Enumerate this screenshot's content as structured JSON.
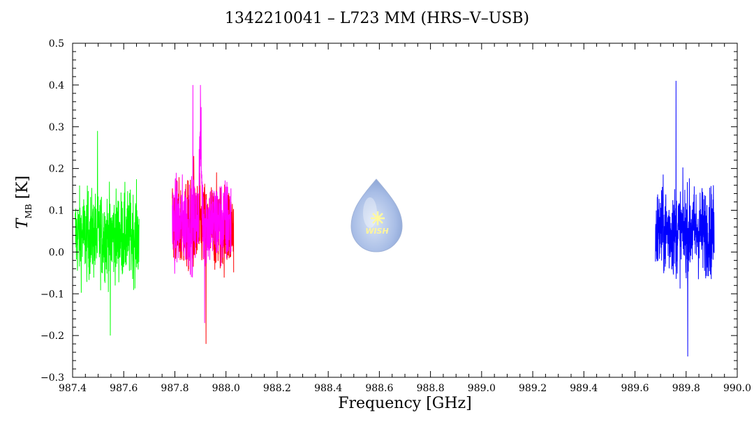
{
  "chart_data": {
    "type": "line",
    "title": "1342210041 – L723 MM (HRS–V–USB)",
    "xlabel": "Frequency [GHz]",
    "ylabel": {
      "symbol": "T",
      "subscript": "MB",
      "unit": "[K]"
    },
    "xlim": [
      987.4,
      990.0
    ],
    "ylim": [
      -0.3,
      0.5
    ],
    "xticks": [
      "987.4",
      "987.6",
      "987.8",
      "988.0",
      "988.2",
      "988.4",
      "988.6",
      "988.8",
      "989.0",
      "989.2",
      "989.4",
      "989.6",
      "989.8",
      "990.0"
    ],
    "yticks": [
      "0.5",
      "0.4",
      "0.3",
      "0.2",
      "0.1",
      "0.0",
      "−0.1",
      "−0.2",
      "−0.3"
    ],
    "grid": false,
    "series": [
      {
        "color": "#00ff00",
        "x_range": [
          987.41,
          987.66
        ],
        "mean": 0.04,
        "min": -0.2,
        "max": 0.29
      },
      {
        "color": "#ff0000",
        "x_range": [
          987.79,
          988.03
        ],
        "mean": 0.06,
        "min": -0.22,
        "max": 0.23
      },
      {
        "color": "#ff00ff",
        "x_range": [
          987.79,
          988.02
        ],
        "mean": 0.07,
        "min": -0.17,
        "max": 0.4,
        "peak_x": 987.9
      },
      {
        "color": "#0000ff",
        "x_range": [
          989.68,
          989.91
        ],
        "mean": 0.05,
        "min": -0.25,
        "max": 0.41
      }
    ]
  },
  "watermark": {
    "text": "WISH"
  }
}
